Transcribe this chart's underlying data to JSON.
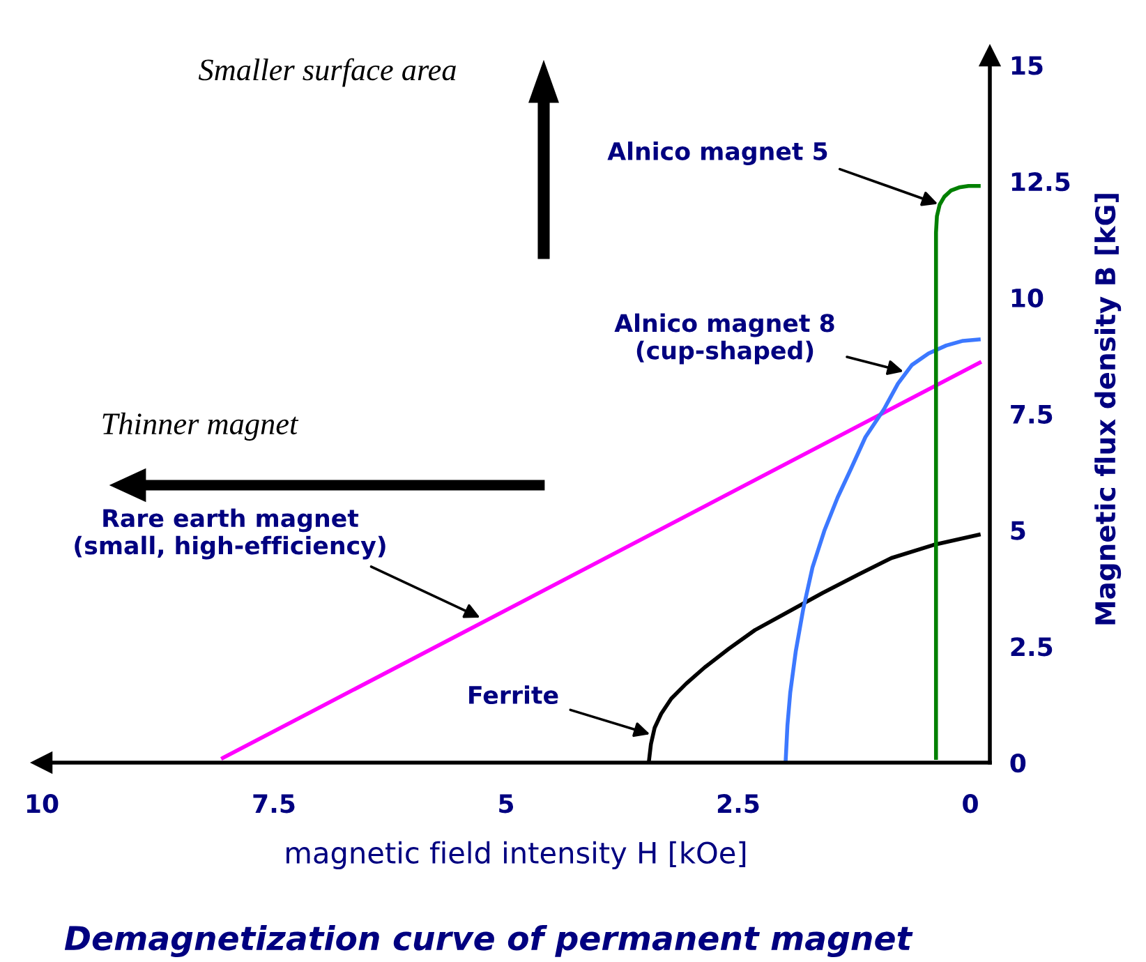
{
  "chart_data": {
    "type": "line",
    "title": "Demagnetization curve of permanent magnet",
    "xlabel": "magnetic field intensity H [kOe]",
    "ylabel": "Magnetic flux density B [kG]",
    "xlim": [
      10.0,
      -0.21
    ],
    "ylim": [
      0,
      15.2
    ],
    "xticks": [
      10,
      7.5,
      5,
      2.5,
      0
    ],
    "yticks": [
      2.5,
      5,
      7.5,
      10,
      12.5,
      15,
      0
    ],
    "grid": false,
    "legend": false,
    "series": [
      {
        "color": "#ff00ff",
        "x": [
          8.05,
          -0.1
        ],
        "values": [
          0.1,
          8.6
        ]
      },
      {
        "color": "#000000",
        "x": [
          3.46,
          3.44,
          3.4,
          3.33,
          3.22,
          3.06,
          2.86,
          2.6,
          2.32,
          2.0,
          1.59,
          1.2,
          0.85,
          0.4,
          -0.09
        ],
        "values": [
          0.06,
          0.4,
          0.75,
          1.05,
          1.38,
          1.7,
          2.05,
          2.45,
          2.85,
          3.2,
          3.65,
          4.05,
          4.4,
          4.68,
          4.9
        ]
      },
      {
        "color": "#3c78ff",
        "x": [
          1.99,
          1.97,
          1.94,
          1.88,
          1.8,
          1.7,
          1.57,
          1.43,
          1.29,
          1.13,
          0.93,
          0.78,
          0.63,
          0.45,
          0.26,
          0.08,
          -0.09
        ],
        "values": [
          0.0,
          0.8,
          1.5,
          2.4,
          3.3,
          4.2,
          5.0,
          5.7,
          6.3,
          7.0,
          7.6,
          8.15,
          8.55,
          8.8,
          8.97,
          9.07,
          9.1
        ]
      },
      {
        "color": "#008000",
        "x": [
          0.37,
          0.37,
          0.36,
          0.33,
          0.28,
          0.21,
          0.12,
          0.02,
          -0.09
        ],
        "values": [
          0.1,
          11.4,
          11.75,
          12.0,
          12.17,
          12.3,
          12.37,
          12.4,
          12.4
        ]
      }
    ],
    "annotations": [
      {
        "text": "Alnico magnet 5",
        "x": 0.33,
        "y": 12.0
      },
      {
        "text": "Alnico magnet 8\n(cup-shaped)",
        "x": 0.7,
        "y": 8.4
      },
      {
        "text": "Rare earth magnet\n(small, high-efficiency)",
        "x": 5.26,
        "y": 3.1
      },
      {
        "text": "Ferrite",
        "x": 3.43,
        "y": 0.6
      },
      "Smaller surface area",
      "Thinner magnet"
    ]
  }
}
